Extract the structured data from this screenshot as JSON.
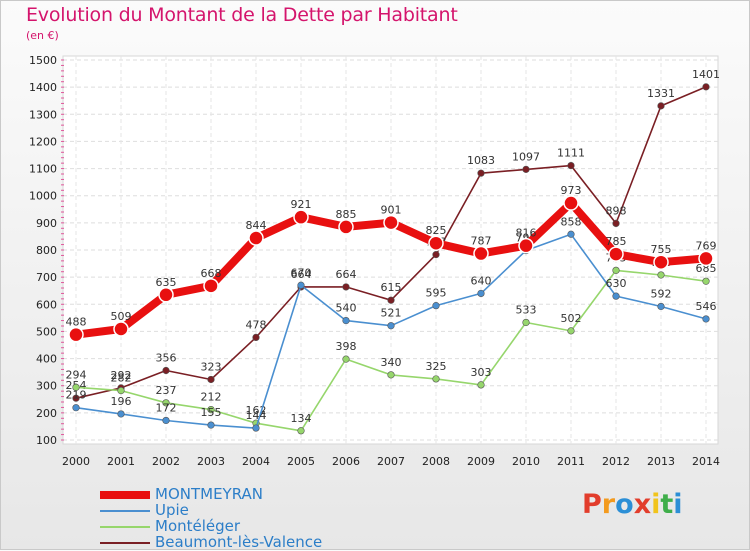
{
  "header": {
    "title": "Evolution du Montant de la Dette par Habitant",
    "unit": "(en €)"
  },
  "brand": {
    "logo_letters": [
      "P",
      "r",
      "o",
      "x",
      "i",
      "t",
      "i"
    ],
    "logo_colors": [
      "#e23d2c",
      "#f39a1e",
      "#2c8fd6",
      "#e23d2c",
      "#f1c41c",
      "#3fae4a",
      "#2c8fd6"
    ]
  },
  "chart_data": {
    "type": "line",
    "title": "Evolution du Montant de la Dette par Habitant",
    "xlabel": "",
    "ylabel": "(en €)",
    "x": [
      "2000",
      "2001",
      "2002",
      "2003",
      "2004",
      "2005",
      "2006",
      "2007",
      "2008",
      "2009",
      "2010",
      "2011",
      "2012",
      "2013",
      "2014"
    ],
    "ylim": [
      100,
      1500
    ],
    "yticks": [
      100,
      200,
      300,
      400,
      500,
      600,
      700,
      800,
      900,
      1000,
      1100,
      1200,
      1300,
      1400,
      1500
    ],
    "grid": true,
    "legend_position": "bottom-left",
    "series": [
      {
        "name": "MONTMEYRAN",
        "color": "#e81010",
        "values": [
          488,
          509,
          635,
          668,
          844,
          921,
          885,
          901,
          825,
          787,
          816,
          973,
          785,
          755,
          769
        ]
      },
      {
        "name": "Upie",
        "color": "#4a8fd0",
        "values": [
          219,
          196,
          172,
          155,
          144,
          670,
          540,
          521,
          595,
          640,
          798,
          858,
          630,
          592,
          546
        ]
      },
      {
        "name": "Montéléger",
        "color": "#96d66c",
        "values": [
          294,
          282,
          237,
          212,
          162,
          134,
          398,
          340,
          325,
          303,
          533,
          502,
          725,
          708,
          685
        ]
      },
      {
        "name": "Beaumont-lès-Valence",
        "color": "#7a1f24",
        "values": [
          254,
          292,
          356,
          323,
          478,
          664,
          664,
          615,
          783,
          1083,
          1097,
          1111,
          898,
          1331,
          1401
        ]
      }
    ]
  }
}
